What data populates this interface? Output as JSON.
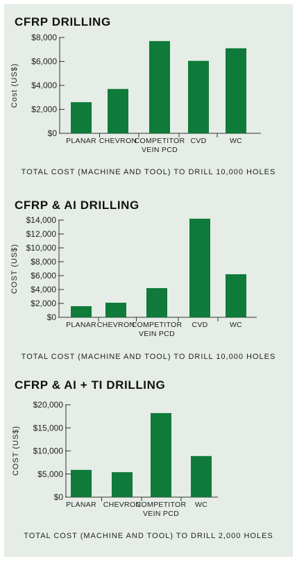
{
  "colors": {
    "bar": "#0f7a3a",
    "panel": "#e5ede6",
    "axis": "#333333",
    "text": "#222222"
  },
  "chart_data": [
    {
      "type": "bar",
      "title": "CFRP DRILLING",
      "ylabel": "Cost (US$)",
      "xlabel": "TOTAL COST (MACHINE AND TOOL) TO DRILL 10,000 HOLES",
      "categories": [
        "PLANAR",
        "CHEVRON",
        "COMPETITOR VEIN PCD",
        "CVD",
        "WC"
      ],
      "category_lines": [
        [
          "PLANAR"
        ],
        [
          "CHEVRON"
        ],
        [
          "COMPETITOR",
          "VEIN PCD"
        ],
        [
          "CVD"
        ],
        [
          "WC"
        ]
      ],
      "values": [
        2600,
        3700,
        7700,
        6050,
        7100
      ],
      "ylim": [
        0,
        8000
      ],
      "yticks": [
        0,
        2000,
        4000,
        6000,
        8000
      ],
      "ytick_labels": [
        "$0",
        "$2,000",
        "$4,000",
        "$6,000",
        "$8,000"
      ],
      "grid": false
    },
    {
      "type": "bar",
      "title": "CFRP & AI DRILLING",
      "ylabel": "COST (US$)",
      "xlabel": "TOTAL COST (MACHINE AND TOOL) TO DRILL 10,000 HOLES",
      "categories": [
        "PLANAR",
        "CHEVRON",
        "COMPETITOR VEIN PCD",
        "CVD",
        "WC"
      ],
      "category_lines": [
        [
          "PLANAR"
        ],
        [
          "CHEVRON"
        ],
        [
          "COMPETITOR",
          "VEIN PCD"
        ],
        [
          "CVD"
        ],
        [
          "WC"
        ]
      ],
      "values": [
        1600,
        2100,
        4200,
        14200,
        6200
      ],
      "ylim": [
        0,
        14000
      ],
      "yticks": [
        0,
        2000,
        4000,
        6000,
        8000,
        10000,
        12000,
        14000
      ],
      "ytick_labels": [
        "$0",
        "$2,000",
        "$4,000",
        "$6,000",
        "$8,000",
        "$10,000",
        "$12,000",
        "$14,000"
      ],
      "grid": false
    },
    {
      "type": "bar",
      "title": "CFRP & AI + TI DRILLING",
      "ylabel": "COST (US$)",
      "xlabel": "TOTAL COST (MACHINE AND TOOL) TO DRILL 2,000 HOLES",
      "categories": [
        "PLANAR",
        "CHEVRON",
        "COMPETITOR VEIN PCD",
        "WC"
      ],
      "category_lines": [
        [
          "PLANAR"
        ],
        [
          "CHEVRON"
        ],
        [
          "COMPETITOR",
          "VEIN PCD"
        ],
        [
          "WC"
        ]
      ],
      "values": [
        5900,
        5400,
        18200,
        8900
      ],
      "ylim": [
        0,
        20000
      ],
      "yticks": [
        0,
        5000,
        10000,
        15000,
        20000
      ],
      "ytick_labels": [
        "$0",
        "$5,000",
        "$10,000",
        "$15,000",
        "$20,000"
      ],
      "grid": false
    }
  ]
}
